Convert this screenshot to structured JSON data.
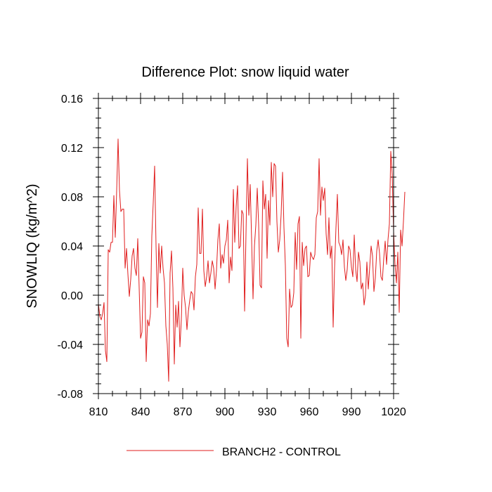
{
  "chart_data": {
    "type": "line",
    "title": "Difference Plot: snow liquid water",
    "xlabel": "",
    "ylabel": "SNOWLIQ  (kg/m^2)",
    "xlim": [
      810,
      1020
    ],
    "ylim": [
      -0.08,
      0.16
    ],
    "xticks": [
      810,
      840,
      870,
      900,
      930,
      960,
      990,
      1020
    ],
    "xtick_labels": [
      "810",
      "840",
      "870",
      "900",
      "930",
      "960",
      "990",
      "1020"
    ],
    "yticks": [
      -0.08,
      -0.04,
      0.0,
      0.04,
      0.08,
      0.12,
      0.16
    ],
    "ytick_labels": [
      "-0.08",
      "-0.04",
      "0.00",
      "0.04",
      "0.08",
      "0.12",
      "0.16"
    ],
    "grid": false,
    "legend_position": "bottom",
    "series": [
      {
        "name": "BRANCH2 - CONTROL",
        "color": "#e01e1e",
        "x_start": 810,
        "x_step": 1,
        "values": [
          -0.007,
          -0.017,
          -0.02,
          -0.015,
          -0.006,
          -0.045,
          -0.054,
          0.037,
          0.035,
          0.043,
          0.043,
          0.081,
          0.047,
          0.085,
          0.127,
          0.085,
          0.068,
          0.07,
          0.07,
          0.022,
          0.038,
          0.017,
          -0.001,
          0.013,
          0.032,
          0.038,
          0.022,
          0.016,
          0.046,
          0.006,
          -0.035,
          -0.03,
          0.015,
          0.01,
          -0.054,
          -0.02,
          -0.025,
          -0.015,
          0.048,
          0.075,
          0.105,
          0.04,
          -0.01,
          0.042,
          0.018,
          0.04,
          0.022,
          0.01,
          -0.025,
          -0.04,
          -0.07,
          0.018,
          0.036,
          0.006,
          -0.056,
          -0.008,
          -0.026,
          -0.005,
          -0.042,
          -0.02,
          0.022,
          0.0,
          -0.01,
          -0.028,
          -0.013,
          -0.004,
          0.003,
          0.001,
          -0.012,
          0.015,
          0.025,
          0.071,
          0.034,
          0.034,
          0.07,
          0.02,
          0.007,
          0.015,
          0.028,
          0.01,
          0.018,
          0.028,
          0.022,
          0.005,
          0.02,
          0.045,
          0.058,
          0.022,
          0.033,
          0.026,
          0.04,
          0.045,
          0.061,
          0.01,
          0.031,
          0.02,
          0.086,
          0.043,
          0.072,
          0.089,
          0.038,
          0.04,
          0.069,
          0.066,
          -0.013,
          0.05,
          0.111,
          0.065,
          0.09,
          0.045,
          -0.003,
          0.04,
          0.057,
          0.087,
          0.057,
          0.008,
          0.006,
          0.093,
          0.07,
          0.082,
          0.03,
          0.077,
          0.057,
          0.108,
          0.08,
          0.107,
          0.105,
          0.06,
          0.035,
          0.045,
          0.066,
          0.1,
          0.055,
          0.024,
          -0.035,
          -0.042,
          0.005,
          -0.01,
          -0.008,
          0.002,
          0.051,
          0.021,
          0.058,
          0.064,
          -0.035,
          0.043,
          0.024,
          0.038,
          0.04,
          0.015,
          0.016,
          0.035,
          0.031,
          0.029,
          0.033,
          0.063,
          0.068,
          0.111,
          0.065,
          0.088,
          0.077,
          0.087,
          0.05,
          0.033,
          0.063,
          0.03,
          0.04,
          -0.026,
          0.022,
          0.055,
          0.082,
          0.043,
          0.04,
          0.033,
          0.045,
          0.023,
          0.012,
          0.021,
          0.04,
          0.037,
          0.023,
          0.015,
          0.049,
          0.021,
          0.011,
          0.035,
          0.027,
          0.005,
          0.01,
          -0.008,
          0.0,
          0.027,
          0.005,
          0.023,
          0.04,
          0.032,
          0.003,
          0.014,
          0.036,
          0.045,
          0.034,
          0.015,
          0.012,
          0.03,
          0.044,
          0.025,
          0.045,
          0.058,
          0.117,
          0.098,
          0.052,
          0.025,
          0.01,
          0.035,
          -0.014,
          0.053,
          0.04,
          0.06,
          0.084
        ]
      }
    ]
  }
}
